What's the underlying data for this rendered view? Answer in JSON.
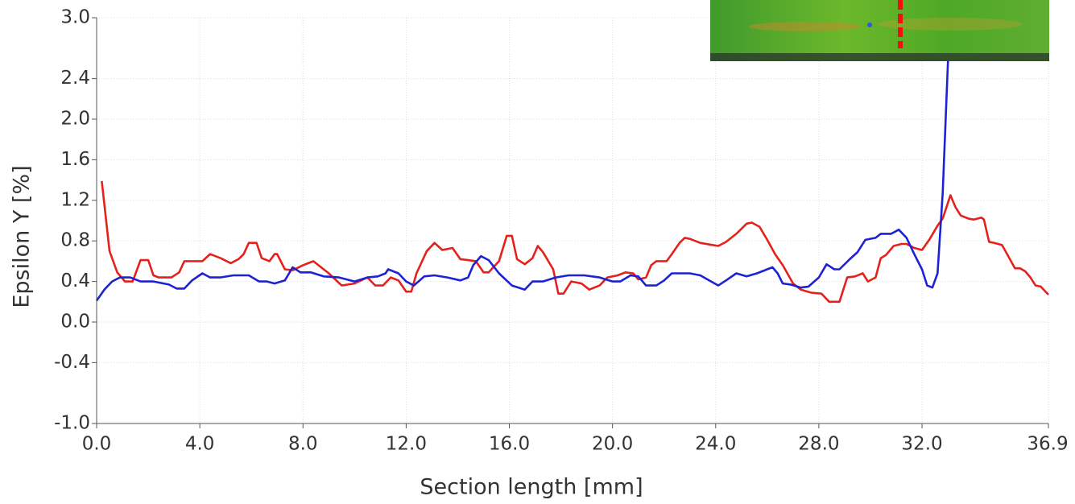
{
  "chart_data": {
    "type": "line",
    "x_label": "Section length [mm]",
    "y_label": "Epsilon Y [%]",
    "xlim": [
      0,
      36.9
    ],
    "ylim": [
      -1.0,
      3.0
    ],
    "xticks": [
      {
        "value": 0,
        "label": "0.0"
      },
      {
        "value": 4,
        "label": "4.0"
      },
      {
        "value": 8,
        "label": "8.0"
      },
      {
        "value": 12,
        "label": "12.0"
      },
      {
        "value": 16,
        "label": "16.0"
      },
      {
        "value": 20,
        "label": "20.0"
      },
      {
        "value": 24,
        "label": "24.0"
      },
      {
        "value": 28,
        "label": "28.0"
      },
      {
        "value": 32,
        "label": "32.0"
      },
      36.9
    ],
    "yticks": [
      {
        "value": 3,
        "label": "3.0"
      },
      2.4,
      {
        "value": 2,
        "label": "2.0"
      },
      1.6,
      1.2,
      0.8,
      0.4,
      {
        "value": 0,
        "label": "0.0"
      },
      -0.4,
      {
        "value": -1,
        "label": "-1.0"
      }
    ],
    "grid": true,
    "series": [
      {
        "color": "#e5211b",
        "x": [
          0.2,
          0.5,
          0.8,
          1.1,
          1.4,
          1.7,
          2.0,
          2.2,
          2.4,
          2.9,
          3.2,
          3.4,
          3.9,
          4.1,
          4.4,
          4.8,
          5.2,
          5.5,
          5.7,
          5.9,
          6.2,
          6.4,
          6.7,
          6.9,
          7.0,
          7.3,
          7.6,
          8.0,
          8.4,
          9.0,
          9.5,
          10.0,
          10.5,
          10.8,
          11.1,
          11.4,
          11.7,
          12.0,
          12.2,
          12.4,
          12.8,
          13.1,
          13.4,
          13.8,
          14.1,
          14.4,
          14.7,
          15.0,
          15.2,
          15.6,
          15.9,
          16.1,
          16.3,
          16.6,
          16.9,
          17.1,
          17.3,
          17.7,
          17.9,
          18.1,
          18.4,
          18.8,
          19.1,
          19.5,
          19.8,
          20.2,
          20.5,
          20.8,
          21.0,
          21.3,
          21.5,
          21.7,
          22.1,
          22.3,
          22.6,
          22.8,
          23.0,
          23.4,
          24.1,
          24.4,
          24.8,
          25.2,
          25.4,
          25.7,
          26.0,
          26.3,
          26.6,
          27.0,
          27.3,
          27.7,
          28.1,
          28.4,
          28.8,
          29.1,
          29.4,
          29.7,
          29.9,
          30.2,
          30.4,
          30.6,
          30.9,
          31.2,
          31.4,
          31.7,
          32.0,
          32.3,
          32.6,
          32.8,
          33.1,
          33.3,
          33.5,
          33.8,
          34.0,
          34.3,
          34.4,
          34.6,
          34.8,
          35.1,
          35.3,
          35.6,
          35.8,
          36.0,
          36.2,
          36.4,
          36.6,
          36.9
        ],
        "values": [
          1.39,
          0.7,
          0.49,
          0.4,
          0.4,
          0.61,
          0.61,
          0.46,
          0.44,
          0.44,
          0.49,
          0.6,
          0.6,
          0.6,
          0.67,
          0.63,
          0.58,
          0.62,
          0.67,
          0.78,
          0.78,
          0.63,
          0.6,
          0.67,
          0.67,
          0.52,
          0.51,
          0.56,
          0.6,
          0.48,
          0.36,
          0.38,
          0.44,
          0.36,
          0.36,
          0.44,
          0.41,
          0.3,
          0.3,
          0.48,
          0.7,
          0.78,
          0.71,
          0.73,
          0.62,
          0.61,
          0.6,
          0.49,
          0.49,
          0.6,
          0.85,
          0.85,
          0.62,
          0.57,
          0.63,
          0.75,
          0.69,
          0.52,
          0.28,
          0.28,
          0.4,
          0.38,
          0.32,
          0.36,
          0.44,
          0.46,
          0.49,
          0.48,
          0.42,
          0.44,
          0.56,
          0.6,
          0.6,
          0.67,
          0.78,
          0.83,
          0.82,
          0.78,
          0.75,
          0.79,
          0.87,
          0.97,
          0.98,
          0.94,
          0.81,
          0.67,
          0.56,
          0.38,
          0.32,
          0.29,
          0.28,
          0.2,
          0.2,
          0.44,
          0.45,
          0.48,
          0.4,
          0.44,
          0.63,
          0.66,
          0.75,
          0.77,
          0.77,
          0.73,
          0.71,
          0.82,
          0.95,
          1.02,
          1.25,
          1.13,
          1.05,
          1.02,
          1.01,
          1.03,
          1.01,
          0.79,
          0.78,
          0.76,
          0.67,
          0.53,
          0.53,
          0.5,
          0.44,
          0.36,
          0.35,
          0.27
        ]
      },
      {
        "color": "#1d22d4",
        "x": [
          0.0,
          0.3,
          0.6,
          0.9,
          1.3,
          1.7,
          2.2,
          2.8,
          3.1,
          3.4,
          3.7,
          4.1,
          4.4,
          4.8,
          5.3,
          5.9,
          6.3,
          6.6,
          6.9,
          7.3,
          7.6,
          7.9,
          8.3,
          8.8,
          9.4,
          10.0,
          10.5,
          10.9,
          11.2,
          11.3,
          11.7,
          12.0,
          12.3,
          12.7,
          13.1,
          13.6,
          14.1,
          14.4,
          14.6,
          14.9,
          15.2,
          15.6,
          16.1,
          16.6,
          16.9,
          17.3,
          17.8,
          18.3,
          18.9,
          19.5,
          20.0,
          20.3,
          20.7,
          21.0,
          21.3,
          21.7,
          22.0,
          22.3,
          23.0,
          23.4,
          24.1,
          24.4,
          24.8,
          25.2,
          25.6,
          26.0,
          26.2,
          26.4,
          26.6,
          26.9,
          27.3,
          27.6,
          28.0,
          28.3,
          28.6,
          28.8,
          29.2,
          29.5,
          29.8,
          30.2,
          30.4,
          30.8,
          31.1,
          31.4,
          31.7,
          32.0,
          32.2,
          32.4,
          32.6,
          32.8,
          33.0,
          33.1
        ],
        "values": [
          0.21,
          0.32,
          0.4,
          0.44,
          0.44,
          0.4,
          0.4,
          0.37,
          0.33,
          0.33,
          0.41,
          0.48,
          0.44,
          0.44,
          0.46,
          0.46,
          0.4,
          0.4,
          0.38,
          0.41,
          0.54,
          0.49,
          0.49,
          0.45,
          0.44,
          0.4,
          0.44,
          0.45,
          0.48,
          0.52,
          0.48,
          0.4,
          0.36,
          0.45,
          0.46,
          0.44,
          0.41,
          0.44,
          0.56,
          0.65,
          0.61,
          0.48,
          0.36,
          0.32,
          0.4,
          0.4,
          0.44,
          0.46,
          0.46,
          0.44,
          0.4,
          0.4,
          0.46,
          0.45,
          0.36,
          0.36,
          0.41,
          0.48,
          0.48,
          0.46,
          0.36,
          0.41,
          0.48,
          0.45,
          0.48,
          0.52,
          0.54,
          0.48,
          0.38,
          0.37,
          0.34,
          0.35,
          0.44,
          0.57,
          0.52,
          0.52,
          0.62,
          0.69,
          0.81,
          0.83,
          0.87,
          0.87,
          0.91,
          0.83,
          0.67,
          0.52,
          0.36,
          0.34,
          0.48,
          1.27,
          2.54,
          3.0
        ]
      }
    ]
  }
}
